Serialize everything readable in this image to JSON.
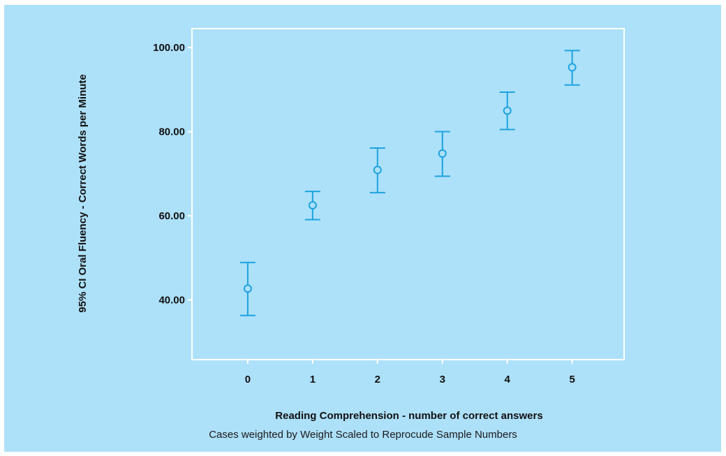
{
  "chart_data": {
    "type": "scatter",
    "subtype": "error-bar",
    "title": "",
    "xlabel": "Reading Comprehension - number of correct answers",
    "ylabel": "95% CI Oral Fluency - Correct Words per Minute",
    "footnote": "Cases weighted by Weight Scaled to Reprocude Sample Numbers",
    "x": [
      0,
      1,
      2,
      3,
      4,
      5
    ],
    "x_tick_labels": [
      "0",
      "1",
      "2",
      "3",
      "4",
      "5"
    ],
    "y_ticks": [
      40,
      60,
      80,
      100
    ],
    "y_tick_labels": [
      "40.00",
      "60.00",
      "80.00",
      "100.00"
    ],
    "series": [
      {
        "mean": [
          42.7,
          62.5,
          70.9,
          74.8,
          85.0,
          95.3
        ],
        "lower": [
          36.3,
          59.1,
          65.5,
          69.4,
          80.5,
          91.1
        ],
        "upper": [
          48.9,
          65.8,
          76.1,
          80.0,
          89.4,
          99.3
        ]
      }
    ],
    "xlim": [
      -0.86,
      5.8
    ],
    "ylim": [
      25.8,
      104.5
    ],
    "grid": false,
    "legend": "none",
    "colors": {
      "background": "#ade0f9",
      "frame": "#ffffff",
      "marker": "#1ca3df",
      "text": "#111111"
    }
  }
}
